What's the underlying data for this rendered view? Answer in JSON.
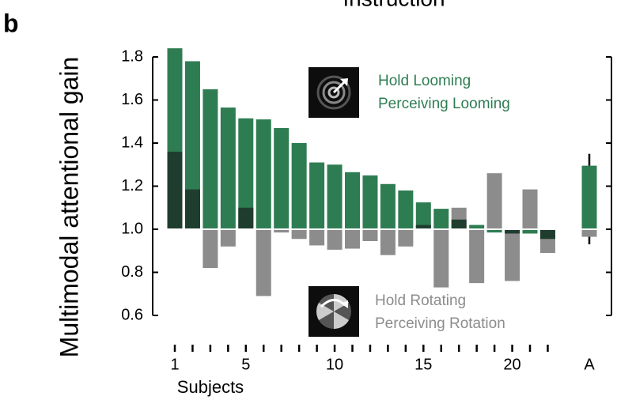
{
  "chart_data": {
    "type": "bar",
    "title": "Instruction",
    "panel_label": "b",
    "y_label": "Multimodal attentional gain",
    "x_label": "Subjects",
    "categories": [
      "1",
      null,
      null,
      null,
      "5",
      null,
      null,
      null,
      null,
      "10",
      null,
      null,
      null,
      null,
      "15",
      null,
      null,
      null,
      null,
      "20",
      null,
      null,
      "A"
    ],
    "baseline": 1,
    "overlap_color": "#1f3d2f",
    "series": [
      {
        "name": "Hold Looming",
        "legend": [
          "Hold Looming",
          "Perceiving Looming"
        ],
        "color": "#2e7d52",
        "values": [
          1.84,
          1.78,
          1.65,
          1.565,
          1.515,
          1.51,
          1.47,
          1.4,
          1.31,
          1.3,
          1.265,
          1.25,
          1.21,
          1.18,
          1.125,
          1.095,
          1.045,
          1.02,
          0.985,
          0.98,
          0.98,
          0.955,
          1.295
        ],
        "errors": [
          null,
          null,
          null,
          null,
          null,
          null,
          null,
          null,
          null,
          null,
          null,
          null,
          null,
          null,
          null,
          null,
          null,
          null,
          null,
          null,
          null,
          null,
          0.055
        ]
      },
      {
        "name": "Hold Rotating",
        "legend": [
          "Hold Rotating",
          "Perceiving Rotation"
        ],
        "color": "#8c8c8c",
        "values": [
          1.36,
          1.185,
          0.82,
          0.92,
          1.1,
          0.69,
          0.985,
          0.955,
          0.925,
          0.905,
          0.91,
          0.945,
          0.88,
          0.92,
          1.02,
          0.73,
          1.1,
          0.75,
          1.26,
          0.76,
          1.185,
          0.89,
          0.965
        ],
        "errors": [
          null,
          null,
          null,
          null,
          null,
          null,
          null,
          null,
          null,
          null,
          null,
          null,
          null,
          null,
          null,
          null,
          null,
          null,
          null,
          null,
          null,
          null,
          0.035
        ]
      }
    ],
    "ylim": [
      0.6,
      1.8
    ],
    "yticks": [
      0.6,
      0.8,
      {
        "value": 1,
        "label": "1.0"
      },
      1.2,
      1.4,
      1.6,
      1.8
    ]
  }
}
